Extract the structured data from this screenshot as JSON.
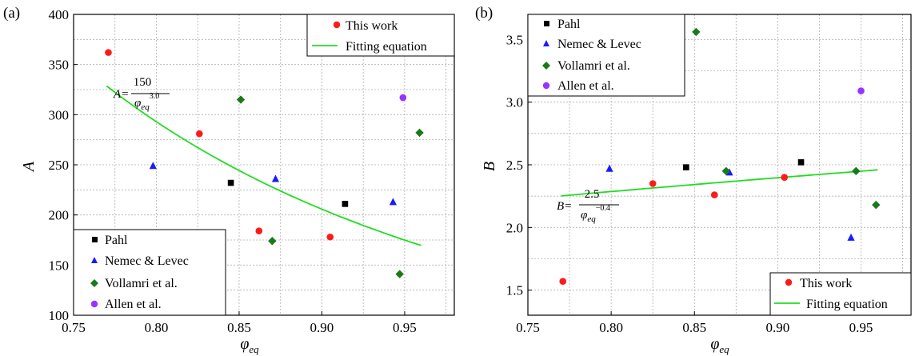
{
  "chart_data": [
    {
      "type": "scatter",
      "panel_label": "(a)",
      "xlabel_base": "φ",
      "xlabel_sub": "eq",
      "ylabel": "A",
      "xlim": [
        0.75,
        0.98
      ],
      "ylim": [
        100,
        400
      ],
      "xticks": [
        "0.75",
        "0.80",
        "0.85",
        "0.90",
        "0.95"
      ],
      "yticks": [
        "100",
        "150",
        "200",
        "250",
        "300",
        "350",
        "400"
      ],
      "grid": true,
      "series": [
        {
          "name": "This work",
          "marker": "circle",
          "color": "#ff1a1a",
          "points": [
            [
              0.771,
              362
            ],
            [
              0.826,
              281
            ],
            [
              0.862,
              184
            ],
            [
              0.905,
              178
            ]
          ]
        },
        {
          "name": "Pahl",
          "marker": "square",
          "color": "#000000",
          "points": [
            [
              0.845,
              232
            ],
            [
              0.914,
              211
            ]
          ]
        },
        {
          "name": "Nemec & Levec",
          "marker": "triangle",
          "color": "#1a1aff",
          "points": [
            [
              0.798,
              249
            ],
            [
              0.872,
              236
            ],
            [
              0.943,
              213
            ]
          ]
        },
        {
          "name": "Vollamri et al.",
          "marker": "diamond",
          "color": "#1a7a1a",
          "points": [
            [
              0.851,
              315
            ],
            [
              0.87,
              174
            ],
            [
              0.947,
              141
            ],
            [
              0.959,
              282
            ]
          ]
        },
        {
          "name": "Allen et al.",
          "marker": "circle",
          "color": "#9933ff",
          "points": [
            [
              0.949,
              317
            ]
          ]
        }
      ],
      "fit": {
        "name": "Fitting equation",
        "color": "#22dd22",
        "coef": 150,
        "exponent": 3.0,
        "x_range": [
          0.77,
          0.96
        ],
        "x_step": 0.005
      },
      "equation": {
        "lhs": "A=",
        "num": "150",
        "den_base": "φ",
        "den_sub": "eq",
        "den_sup": "3.0"
      },
      "legends": [
        {
          "position": "top-right",
          "items": [
            "This work",
            "Fitting equation"
          ]
        },
        {
          "position": "bottom-left",
          "items": [
            "Pahl",
            "Nemec & Levec",
            "Vollamri et al.",
            "Allen et al."
          ]
        }
      ]
    },
    {
      "type": "scatter",
      "panel_label": "(b)",
      "xlabel_base": "φ",
      "xlabel_sub": "eq",
      "ylabel": "B",
      "xlim": [
        0.75,
        0.98
      ],
      "ylim": [
        1.3,
        3.7
      ],
      "xticks": [
        "0.75",
        "0.80",
        "0.85",
        "0.90",
        "0.95"
      ],
      "yticks": [
        "1.5",
        "2.0",
        "2.5",
        "3.0",
        "3.5"
      ],
      "grid": true,
      "series": [
        {
          "name": "This work",
          "marker": "circle",
          "color": "#ff1a1a",
          "points": [
            [
              0.771,
              1.57
            ],
            [
              0.825,
              2.35
            ],
            [
              0.862,
              2.26
            ],
            [
              0.904,
              2.4
            ]
          ]
        },
        {
          "name": "Pahl",
          "marker": "square",
          "color": "#000000",
          "points": [
            [
              0.845,
              2.48
            ],
            [
              0.914,
              2.52
            ]
          ]
        },
        {
          "name": "Nemec & Levec",
          "marker": "triangle",
          "color": "#1a1aff",
          "points": [
            [
              0.799,
              2.47
            ],
            [
              0.871,
              2.44
            ],
            [
              0.944,
              1.92
            ]
          ]
        },
        {
          "name": "Vollamri et al.",
          "marker": "diamond",
          "color": "#1a7a1a",
          "points": [
            [
              0.851,
              3.56
            ],
            [
              0.869,
              2.45
            ],
            [
              0.947,
              2.45
            ],
            [
              0.959,
              2.18
            ]
          ]
        },
        {
          "name": "Allen et al.",
          "marker": "circle",
          "color": "#9933ff",
          "points": [
            [
              0.95,
              3.09
            ]
          ]
        }
      ],
      "fit": {
        "name": "Fitting equation",
        "color": "#22dd22",
        "coef": 2.5,
        "exponent": -0.4,
        "x_range": [
          0.77,
          0.96
        ],
        "x_step": 0.005
      },
      "equation": {
        "lhs": "B=",
        "num": "2.5",
        "den_base": "φ",
        "den_sub": "eq",
        "den_sup": "−0.4"
      },
      "legends": [
        {
          "position": "top-left",
          "items": [
            "Pahl",
            "Nemec & Levec",
            "Vollamri et al.",
            "Allen et al."
          ]
        },
        {
          "position": "bottom-right",
          "items": [
            "This work",
            "Fitting equation"
          ]
        }
      ]
    }
  ]
}
